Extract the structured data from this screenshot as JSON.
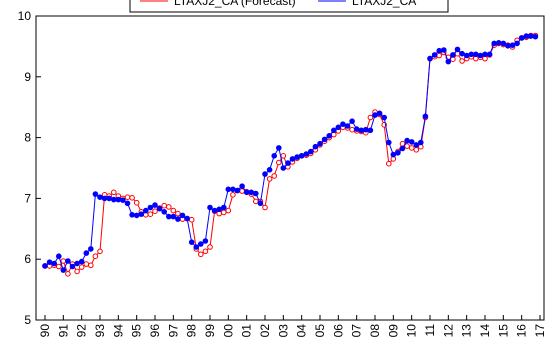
{
  "chart_data": {
    "type": "line",
    "title": "",
    "xlabel": "",
    "ylabel": "",
    "ylim": [
      5,
      10
    ],
    "yticks": [
      5,
      6,
      7,
      8,
      9,
      10
    ],
    "year_ticks": [
      "90",
      "91",
      "92",
      "93",
      "94",
      "95",
      "96",
      "97",
      "98",
      "99",
      "00",
      "01",
      "02",
      "03",
      "04",
      "05",
      "06",
      "07",
      "08",
      "09",
      "10",
      "11",
      "12",
      "13",
      "14",
      "15",
      "16",
      "17"
    ],
    "x_start": 1990.0,
    "x_step": 0.25,
    "legend": {
      "placement": "top-center",
      "labels": [
        "LTAXJ2_CA (Forecast)",
        "LTAXJ2_CA"
      ]
    },
    "series": [
      {
        "name": "LTAXJ2_CA (Forecast)",
        "color": "#ff0000",
        "marker_fill": "#ffffff",
        "values": [
          5.89,
          5.89,
          5.9,
          5.88,
          5.97,
          5.76,
          5.92,
          5.8,
          5.87,
          5.92,
          5.9,
          6.05,
          6.13,
          7.06,
          7.04,
          7.1,
          7.04,
          7.0,
          7.02,
          7.01,
          6.93,
          6.78,
          6.73,
          6.74,
          6.79,
          6.84,
          6.88,
          6.86,
          6.8,
          6.75,
          6.66,
          6.67,
          6.65,
          6.17,
          6.08,
          6.13,
          6.2,
          6.79,
          6.75,
          6.77,
          6.8,
          7.06,
          7.13,
          7.12,
          7.11,
          7.07,
          6.95,
          6.95,
          6.85,
          7.32,
          7.37,
          7.59,
          7.7,
          7.52,
          7.6,
          7.66,
          7.7,
          7.71,
          7.74,
          7.8,
          7.88,
          7.94,
          8.0,
          8.05,
          8.11,
          8.17,
          8.16,
          8.13,
          8.11,
          8.1,
          8.08,
          8.33,
          8.42,
          8.38,
          8.21,
          7.57,
          7.65,
          7.77,
          7.9,
          7.86,
          7.83,
          7.8,
          7.85,
          8.33,
          9.3,
          9.33,
          9.35,
          9.4,
          9.32,
          9.29,
          9.38,
          9.26,
          9.3,
          9.33,
          9.3,
          9.32,
          9.3,
          9.36,
          9.52,
          9.55,
          9.53,
          9.52,
          9.49,
          9.6,
          9.64,
          9.65,
          9.68,
          9.68
        ]
      },
      {
        "name": "LTAXJ2_CA",
        "color": "#0000ff",
        "marker_fill": "#0000ff",
        "values": [
          5.89,
          5.95,
          5.93,
          6.05,
          5.82,
          5.97,
          5.88,
          5.93,
          5.96,
          6.1,
          6.17,
          7.07,
          7.02,
          7.0,
          7.0,
          6.98,
          6.98,
          6.97,
          6.92,
          6.73,
          6.72,
          6.74,
          6.8,
          6.85,
          6.89,
          6.83,
          6.78,
          6.7,
          6.7,
          6.66,
          6.72,
          6.67,
          6.28,
          6.2,
          6.25,
          6.3,
          6.85,
          6.8,
          6.82,
          6.85,
          7.15,
          7.15,
          7.13,
          7.2,
          7.1,
          7.1,
          7.08,
          6.92,
          7.4,
          7.47,
          7.7,
          7.83,
          7.5,
          7.58,
          7.65,
          7.68,
          7.7,
          7.73,
          7.77,
          7.85,
          7.9,
          7.97,
          8.03,
          8.12,
          8.17,
          8.22,
          8.19,
          8.27,
          8.14,
          8.12,
          8.13,
          8.12,
          8.37,
          8.4,
          8.33,
          7.92,
          7.72,
          7.75,
          7.82,
          7.95,
          7.93,
          7.88,
          7.92,
          8.35,
          9.3,
          9.36,
          9.43,
          9.44,
          9.25,
          9.36,
          9.45,
          9.38,
          9.35,
          9.37,
          9.37,
          9.35,
          9.37,
          9.37,
          9.55,
          9.56,
          9.55,
          9.51,
          9.52,
          9.55,
          9.64,
          9.67,
          9.67,
          9.66
        ]
      }
    ]
  }
}
